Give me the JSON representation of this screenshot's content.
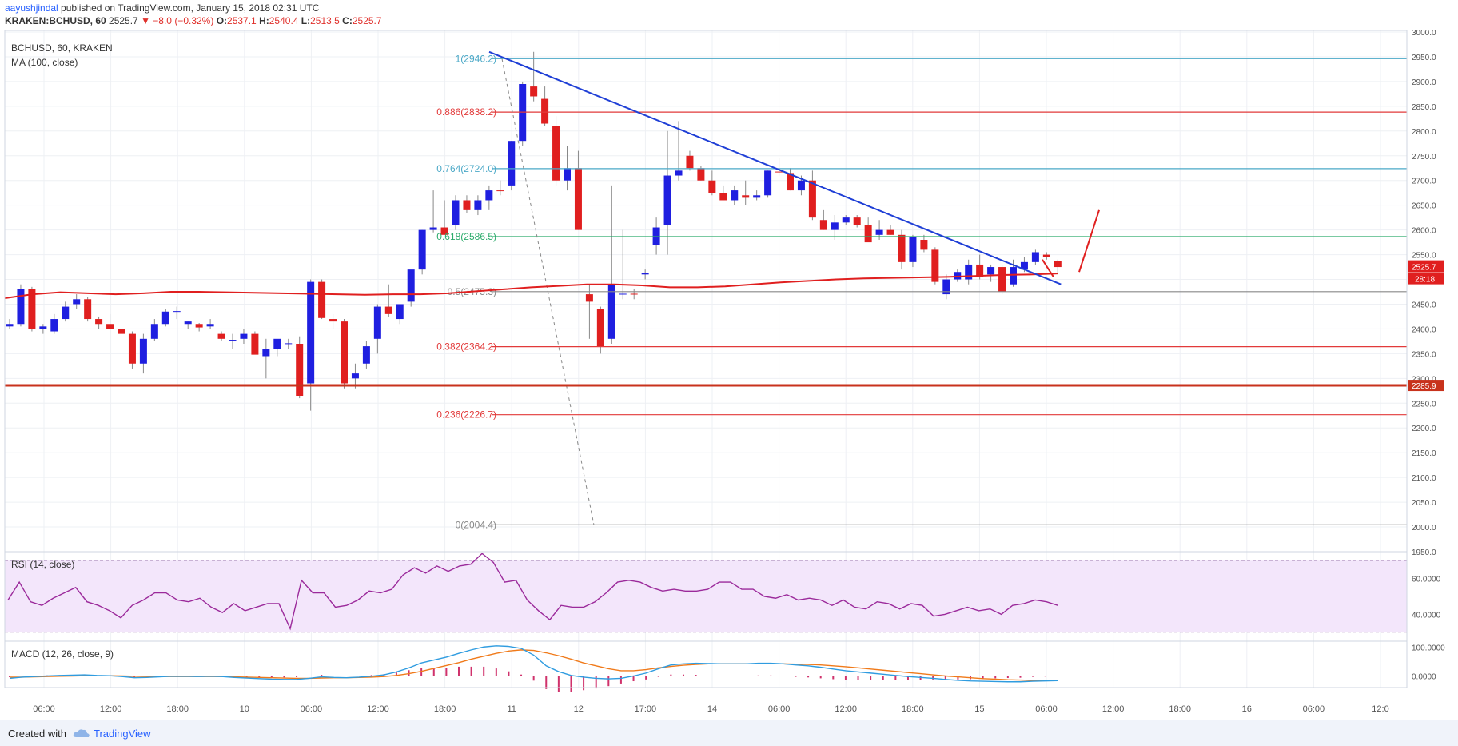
{
  "header": {
    "author": "aayushjindal",
    "published": " published on TradingView.com, January 15, 2018 02:31 UTC",
    "symbol": "KRAKEN:BCHUSD, 60",
    "last": "2525.7",
    "change": "▼ −8.0 (−0.32%)",
    "o_label": "O:",
    "o": "2537.1",
    "h_label": "H:",
    "h": "2540.4",
    "l_label": "L:",
    "l": "2513.5",
    "c_label": "C:",
    "c": "2525.7"
  },
  "footer": {
    "created_with": "Created with",
    "brand": "TradingView"
  },
  "colors": {
    "up": "#1f1fe0",
    "down": "#e01f1f",
    "ma": "#e01f1f",
    "trend": "#1f3fd6",
    "fib_blue": "#4aa8c7",
    "fib_red": "#e23a3a",
    "fib_green": "#2bab6b",
    "support": "#c8321c",
    "rsi": "#9b2a9b",
    "macd": "#2f9ce0",
    "signal": "#f07a1a",
    "hist": "#d0326c"
  },
  "chart_data": [
    {
      "type": "candlestick",
      "title": "BCHUSD, 60, KRAKEN",
      "indicator": "MA (100, close)",
      "ylim": [
        1950,
        3000
      ],
      "y_ticks": [
        1950,
        2000,
        2050,
        2100,
        2150,
        2200,
        2250,
        2300,
        2350,
        2400,
        2450,
        2500,
        2550,
        2600,
        2650,
        2700,
        2750,
        2800,
        2850,
        2900,
        2950,
        3000
      ],
      "x_ticks": [
        "06:00",
        "12:00",
        "18:00",
        "10",
        "06:00",
        "12:00",
        "18:00",
        "11",
        "12",
        "17:00",
        "14",
        "06:00",
        "12:00",
        "18:00",
        "15",
        "06:00",
        "12:00",
        "18:00",
        "16",
        "06:00",
        "12:0"
      ],
      "candles": [
        [
          2405,
          2420,
          2400,
          2410
        ],
        [
          2410,
          2490,
          2405,
          2480
        ],
        [
          2480,
          2485,
          2395,
          2400
        ],
        [
          2400,
          2410,
          2390,
          2405
        ],
        [
          2395,
          2430,
          2390,
          2420
        ],
        [
          2420,
          2455,
          2415,
          2445
        ],
        [
          2450,
          2470,
          2440,
          2460
        ],
        [
          2460,
          2465,
          2415,
          2420
        ],
        [
          2420,
          2425,
          2400,
          2410
        ],
        [
          2410,
          2430,
          2400,
          2400
        ],
        [
          2400,
          2405,
          2380,
          2390
        ],
        [
          2390,
          2395,
          2320,
          2330
        ],
        [
          2330,
          2390,
          2310,
          2380
        ],
        [
          2380,
          2420,
          2375,
          2410
        ],
        [
          2410,
          2440,
          2405,
          2435
        ],
        [
          2435,
          2445,
          2420,
          2436
        ],
        [
          2410,
          2415,
          2400,
          2415
        ],
        [
          2410,
          2412,
          2395,
          2403
        ],
        [
          2405,
          2420,
          2400,
          2410
        ],
        [
          2390,
          2395,
          2375,
          2380
        ],
        [
          2375,
          2390,
          2360,
          2378
        ],
        [
          2380,
          2400,
          2370,
          2390
        ],
        [
          2390,
          2395,
          2350,
          2348
        ],
        [
          2345,
          2380,
          2300,
          2360
        ],
        [
          2360,
          2375,
          2345,
          2380
        ],
        [
          2370,
          2380,
          2360,
          2371
        ],
        [
          2370,
          2385,
          2260,
          2265
        ],
        [
          2290,
          2500,
          2235,
          2495
        ],
        [
          2495,
          2500,
          2420,
          2422
        ],
        [
          2420,
          2430,
          2400,
          2415
        ],
        [
          2415,
          2420,
          2280,
          2290
        ],
        [
          2300,
          2330,
          2280,
          2310
        ],
        [
          2330,
          2375,
          2320,
          2365
        ],
        [
          2380,
          2450,
          2350,
          2445
        ],
        [
          2445,
          2490,
          2425,
          2430
        ],
        [
          2420,
          2450,
          2410,
          2450
        ],
        [
          2455,
          2510,
          2445,
          2520
        ],
        [
          2520,
          2600,
          2510,
          2600
        ],
        [
          2600,
          2680,
          2595,
          2605
        ],
        [
          2605,
          2660,
          2595,
          2590
        ],
        [
          2610,
          2670,
          2600,
          2660
        ],
        [
          2660,
          2670,
          2635,
          2640
        ],
        [
          2640,
          2670,
          2630,
          2660
        ],
        [
          2660,
          2690,
          2640,
          2680
        ],
        [
          2680,
          2700,
          2670,
          2679
        ],
        [
          2690,
          2780,
          2680,
          2780
        ],
        [
          2780,
          2900,
          2770,
          2895
        ],
        [
          2890,
          2960,
          2860,
          2870
        ],
        [
          2865,
          2890,
          2810,
          2815
        ],
        [
          2810,
          2830,
          2690,
          2700
        ],
        [
          2700,
          2770,
          2680,
          2725
        ],
        [
          2725,
          2760,
          2600,
          2600
        ],
        [
          2470,
          2490,
          2380,
          2455
        ],
        [
          2440,
          2445,
          2350,
          2365
        ],
        [
          2380,
          2690,
          2370,
          2490
        ],
        [
          2470,
          2600,
          2460,
          2471
        ],
        [
          2471,
          2480,
          2460,
          2470
        ],
        [
          2510,
          2520,
          2500,
          2513
        ],
        [
          2570,
          2625,
          2550,
          2605
        ],
        [
          2610,
          2800,
          2550,
          2710
        ],
        [
          2710,
          2820,
          2700,
          2720
        ],
        [
          2750,
          2760,
          2720,
          2725
        ],
        [
          2725,
          2730,
          2700,
          2700
        ],
        [
          2700,
          2720,
          2670,
          2675
        ],
        [
          2675,
          2690,
          2660,
          2660
        ],
        [
          2660,
          2690,
          2650,
          2680
        ],
        [
          2670,
          2700,
          2650,
          2665
        ],
        [
          2665,
          2680,
          2660,
          2670
        ],
        [
          2670,
          2720,
          2665,
          2720
        ],
        [
          2718,
          2745,
          2710,
          2717
        ],
        [
          2715,
          2725,
          2680,
          2680
        ],
        [
          2680,
          2710,
          2670,
          2700
        ],
        [
          2700,
          2720,
          2620,
          2625
        ],
        [
          2620,
          2640,
          2600,
          2600
        ],
        [
          2600,
          2630,
          2580,
          2615
        ],
        [
          2615,
          2630,
          2610,
          2625
        ],
        [
          2625,
          2630,
          2605,
          2610
        ],
        [
          2610,
          2625,
          2580,
          2575
        ],
        [
          2590,
          2620,
          2580,
          2600
        ],
        [
          2600,
          2610,
          2590,
          2590
        ],
        [
          2590,
          2600,
          2520,
          2535
        ],
        [
          2535,
          2590,
          2525,
          2585
        ],
        [
          2580,
          2590,
          2555,
          2560
        ],
        [
          2560,
          2565,
          2490,
          2495
        ],
        [
          2470,
          2510,
          2460,
          2500
        ],
        [
          2500,
          2520,
          2495,
          2515
        ],
        [
          2500,
          2540,
          2490,
          2530
        ],
        [
          2530,
          2550,
          2500,
          2505
        ],
        [
          2510,
          2530,
          2495,
          2525
        ],
        [
          2525,
          2530,
          2470,
          2475
        ],
        [
          2490,
          2540,
          2485,
          2525
        ],
        [
          2520,
          2545,
          2515,
          2535
        ],
        [
          2535,
          2560,
          2530,
          2555
        ],
        [
          2550,
          2555,
          2540,
          2545
        ],
        [
          2537,
          2540,
          2513,
          2525
        ]
      ],
      "ma_100": [
        2462,
        2470,
        2474,
        2472,
        2470,
        2472,
        2475,
        2475,
        2474,
        2473,
        2472,
        2471,
        2470,
        2469,
        2470,
        2470,
        2472,
        2476,
        2480,
        2484,
        2487,
        2490,
        2490,
        2488,
        2484,
        2484,
        2486,
        2490,
        2494,
        2497,
        2500,
        2502,
        2503,
        2504,
        2505,
        2507,
        2509,
        2510,
        2512
      ],
      "last_price": "2525.7",
      "countdown": "28:18",
      "support_price": "2285.9",
      "support_value": 2285.9,
      "fib_levels": [
        {
          "ratio": "1",
          "price": 2946.2,
          "label": "1(2946.2)",
          "color": "blue"
        },
        {
          "ratio": "0.886",
          "price": 2838.2,
          "label": "0.886(2838.2)",
          "color": "red"
        },
        {
          "ratio": "0.764",
          "price": 2724.0,
          "label": "0.764(2724.0)",
          "color": "blue"
        },
        {
          "ratio": "0.618",
          "price": 2586.5,
          "label": "0.618(2586.5)",
          "color": "green"
        },
        {
          "ratio": "0.5",
          "price": 2475.3,
          "label": "0.5(2475.3)",
          "color": "gray"
        },
        {
          "ratio": "0.382",
          "price": 2364.2,
          "label": "0.382(2364.2)",
          "color": "red"
        },
        {
          "ratio": "0.236",
          "price": 2226.7,
          "label": "0.236(2226.7)",
          "color": "red"
        },
        {
          "ratio": "0",
          "price": 2004.4,
          "label": "0(2004.4)",
          "color": "gray"
        }
      ],
      "trend_line": {
        "from": [
          2960
        ],
        "to": [
          2490
        ]
      }
    },
    {
      "type": "line",
      "title": "RSI (14, close)",
      "ylim": [
        25,
        75
      ],
      "y_ticks": [
        "60.0000",
        "40.0000"
      ],
      "band": [
        30,
        70
      ],
      "values": [
        48,
        58,
        47,
        45,
        49,
        52,
        55,
        47,
        45,
        42,
        38,
        45,
        48,
        52,
        52,
        48,
        47,
        49,
        44,
        41,
        46,
        42,
        44,
        46,
        46,
        32,
        59,
        52,
        52,
        44,
        45,
        48,
        53,
        52,
        54,
        62,
        66,
        63,
        67,
        64,
        67,
        68,
        74,
        69,
        58,
        59,
        48,
        42,
        37,
        45,
        44,
        44,
        47,
        52,
        58,
        59,
        58,
        55,
        53,
        54,
        53,
        53,
        54,
        58,
        58,
        54,
        54,
        50,
        49,
        51,
        48,
        49,
        48,
        45,
        48,
        44,
        43,
        47,
        46,
        43,
        46,
        45,
        39,
        40,
        42,
        44,
        42,
        43,
        40,
        45,
        46,
        48,
        47,
        45
      ]
    },
    {
      "type": "line",
      "title": "MACD (12, 26, close, 9)",
      "ylim": [
        -40,
        120
      ],
      "y_ticks": [
        "100.0000",
        "0.0000"
      ],
      "macd": [
        -8,
        -4,
        -2,
        0,
        2,
        3,
        4,
        2,
        1,
        -2,
        -6,
        -5,
        -3,
        -1,
        -1,
        -2,
        -1,
        -2,
        -5,
        -7,
        -9,
        -11,
        -12,
        -12,
        -8,
        -3,
        -5,
        -6,
        -4,
        -1,
        4,
        14,
        28,
        45,
        55,
        65,
        78,
        90,
        100,
        104,
        102,
        95,
        72,
        35,
        15,
        2,
        -4,
        -8,
        -10,
        -8,
        0,
        10,
        25,
        38,
        42,
        44,
        43,
        42,
        42,
        42,
        44,
        44,
        42,
        38,
        35,
        30,
        24,
        18,
        14,
        10,
        6,
        2,
        -2,
        -5,
        -8,
        -12,
        -15,
        -17,
        -18,
        -19,
        -20,
        -20,
        -18,
        -17,
        -16
      ],
      "signal": [
        -4,
        -4,
        -3,
        -2,
        -1,
        0,
        1,
        1,
        1,
        0,
        -1,
        -2,
        -2,
        -2,
        -2,
        -2,
        -2,
        -2,
        -3,
        -4,
        -5,
        -6,
        -7,
        -8,
        -8,
        -7,
        -6,
        -6,
        -5,
        -4,
        -2,
        2,
        8,
        16,
        26,
        36,
        46,
        58,
        68,
        78,
        86,
        90,
        88,
        80,
        70,
        58,
        45,
        35,
        25,
        18,
        18,
        22,
        28,
        33,
        37,
        40,
        42,
        42,
        42,
        42,
        42,
        42,
        42,
        41,
        40,
        38,
        35,
        32,
        28,
        24,
        20,
        16,
        12,
        8,
        4,
        0,
        -3,
        -6,
        -9,
        -11,
        -13,
        -14,
        -15,
        -15,
        -15
      ],
      "histogram": [
        -4,
        0,
        1,
        2,
        3,
        3,
        3,
        1,
        0,
        -2,
        -5,
        -3,
        -1,
        1,
        1,
        0,
        1,
        0,
        -2,
        -3,
        -4,
        -5,
        -5,
        -4,
        0,
        4,
        1,
        0,
        1,
        3,
        6,
        12,
        20,
        29,
        29,
        29,
        32,
        32,
        32,
        26,
        16,
        5,
        -16,
        -45,
        -55,
        -56,
        -49,
        -43,
        -35,
        -26,
        -18,
        -12,
        -3,
        5,
        5,
        4,
        1,
        0,
        0,
        0,
        2,
        2,
        0,
        -3,
        -5,
        -8,
        -11,
        -14,
        -14,
        -14,
        -14,
        -14,
        -14,
        -13,
        -12,
        -12,
        -12,
        -11,
        -9,
        -8,
        -7,
        -6,
        -3,
        -2,
        -1
      ]
    }
  ]
}
